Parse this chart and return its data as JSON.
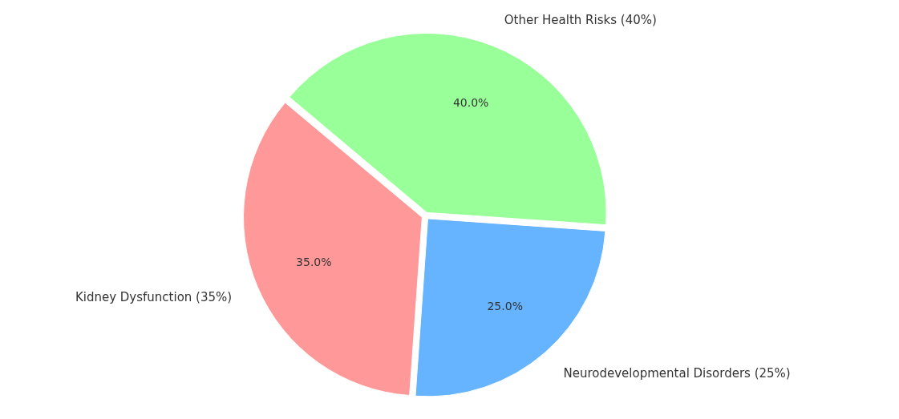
{
  "chart_data": {
    "type": "pie",
    "categories": [
      "Other Health Risks (40%)",
      "Neurodevelopmental Disorders (25%)",
      "Kidney Dysfunction (35%)"
    ],
    "values": [
      40,
      25,
      35
    ],
    "colors": [
      "#99ff99",
      "#66b3ff",
      "#ff9999"
    ],
    "value_labels": [
      "40.0%",
      "25.0%",
      "35.0%"
    ]
  }
}
